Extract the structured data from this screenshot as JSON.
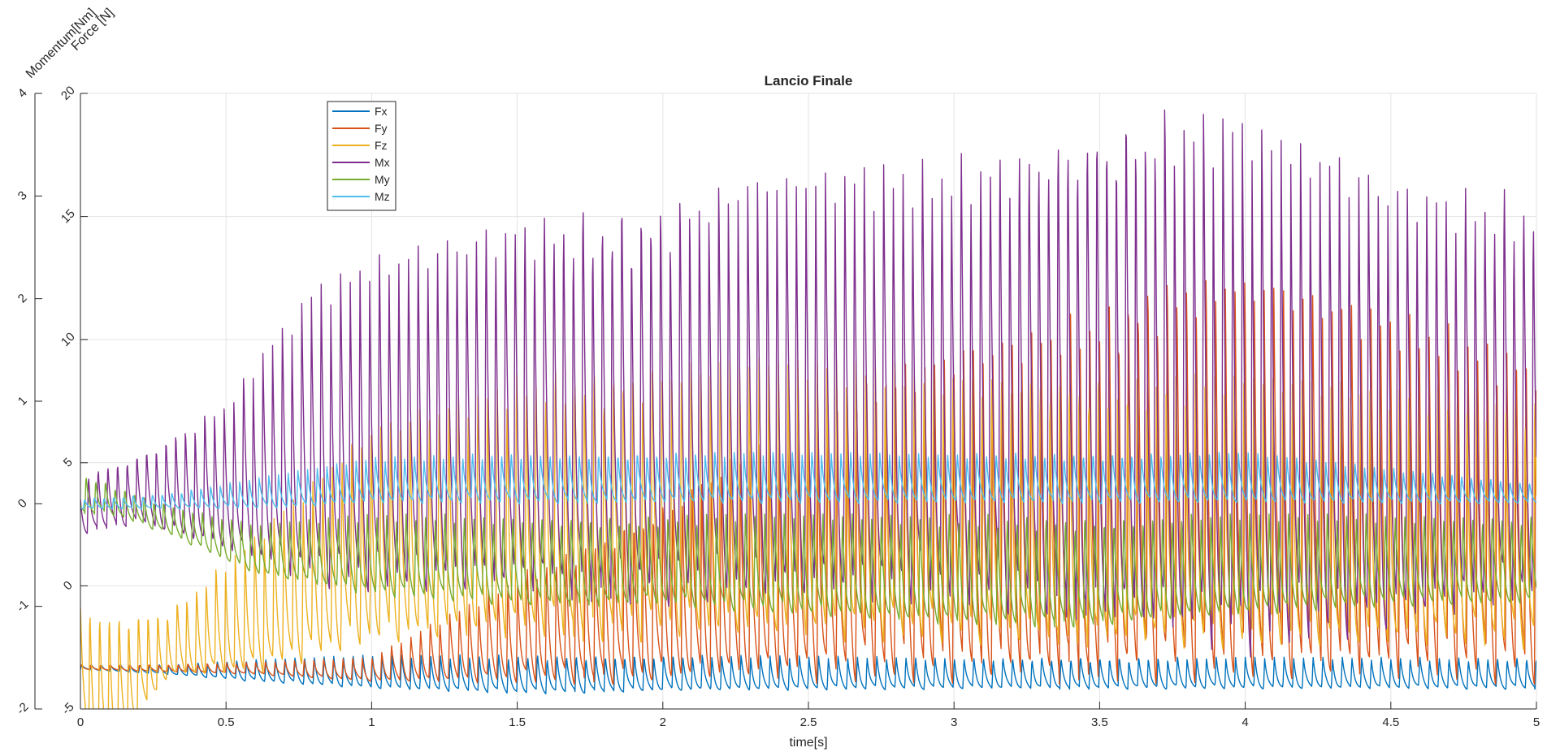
{
  "chart_data": {
    "type": "line",
    "title": "Lancio Finale",
    "xlabel": "time[s]",
    "ylabel_left_outer": "Momentum[Nm]",
    "ylabel_left_inner": "Force [N]",
    "xlim": [
      0,
      5
    ],
    "ylim_force": [
      -5,
      20
    ],
    "ylim_momentum": [
      -2,
      4
    ],
    "xticks": [
      "0",
      "0.5",
      "1",
      "1.5",
      "2",
      "2.5",
      "3",
      "3.5",
      "4",
      "4.5",
      "5"
    ],
    "yticks_force": [
      "-5",
      "0",
      "5",
      "10",
      "15",
      "20"
    ],
    "yticks_momentum": [
      "-2",
      "-1",
      "0",
      "1",
      "2",
      "3",
      "4"
    ],
    "grid": true,
    "legend_position": "top-left",
    "oscillation_period_s": 0.0333,
    "series": [
      {
        "name": "Fx",
        "axis": "force",
        "color": "#0072BD",
        "envelope_t": [
          0,
          0.3,
          0.6,
          1.0,
          1.5,
          2.0,
          3.0,
          4.0,
          5.0
        ],
        "envelope_max": [
          -3.2,
          -3.2,
          -3.0,
          -2.8,
          -2.8,
          -2.8,
          -2.9,
          -2.9,
          -2.9
        ],
        "envelope_min": [
          -3.4,
          -3.6,
          -3.9,
          -4.2,
          -4.4,
          -4.3,
          -4.2,
          -4.2,
          -4.2
        ]
      },
      {
        "name": "Fy",
        "axis": "force",
        "color": "#D95319",
        "envelope_t": [
          0,
          0.3,
          0.6,
          1.0,
          1.5,
          2.0,
          2.5,
          3.0,
          3.5,
          3.7,
          4.0,
          4.5,
          5.0
        ],
        "envelope_max": [
          -3.2,
          -3.2,
          -3.1,
          -2.9,
          0.5,
          3.5,
          7.0,
          10.0,
          12.0,
          12.5,
          12.3,
          11.2,
          9.8
        ],
        "envelope_min": [
          -3.4,
          -3.5,
          -3.6,
          -3.9,
          -4.0,
          -4.0,
          -4.0,
          -4.0,
          -4.0,
          -4.0,
          -4.0,
          -4.0,
          -4.0
        ]
      },
      {
        "name": "Fz",
        "axis": "force",
        "color": "#EDB120",
        "envelope_t": [
          0,
          0.1,
          0.3,
          0.6,
          1.0,
          1.5,
          2.0,
          2.5,
          3.0,
          3.5,
          4.0,
          4.5,
          5.0
        ],
        "envelope_max": [
          -0.5,
          -1.0,
          -1.0,
          2.0,
          6.5,
          8.8,
          9.3,
          9.2,
          9.0,
          8.8,
          8.5,
          8.2,
          8.0
        ],
        "envelope_min": [
          -6.0,
          -7.0,
          -3.8,
          -3.6,
          -2.5,
          -2.2,
          -2.3,
          -2.3,
          -2.4,
          -2.5,
          -2.6,
          -2.6,
          -2.6
        ]
      },
      {
        "name": "Mx",
        "axis": "momentum",
        "color": "#7E2F8E",
        "envelope_t": [
          0,
          0.2,
          0.5,
          0.8,
          1.0,
          1.5,
          2.0,
          2.5,
          3.0,
          3.5,
          3.7,
          4.0,
          4.5,
          5.0
        ],
        "envelope_max": [
          0.3,
          0.5,
          1.0,
          2.1,
          2.4,
          2.9,
          3.0,
          3.2,
          3.4,
          3.9,
          3.9,
          3.7,
          3.2,
          3.1
        ],
        "envelope_min": [
          -0.3,
          -0.2,
          -0.5,
          -0.8,
          -0.9,
          -0.9,
          -1.0,
          -1.0,
          -1.0,
          -1.2,
          -1.4,
          -1.5,
          -1.3,
          -1.0
        ]
      },
      {
        "name": "My",
        "axis": "momentum",
        "color": "#77AC30",
        "envelope_t": [
          0,
          0.1,
          0.3,
          0.6,
          1.0,
          1.5,
          2.0,
          2.5,
          3.0,
          3.5,
          4.0,
          4.5,
          5.0
        ],
        "envelope_max": [
          0.3,
          0.2,
          0.0,
          -0.2,
          -0.1,
          -0.1,
          -0.1,
          -0.1,
          -0.1,
          -0.1,
          -0.1,
          -0.1,
          -0.1
        ],
        "envelope_min": [
          -0.1,
          -0.1,
          -0.3,
          -0.7,
          -0.9,
          -1.0,
          -1.0,
          -1.1,
          -1.2,
          -1.2,
          -1.1,
          -1.0,
          -1.0
        ]
      },
      {
        "name": "Mz",
        "axis": "momentum",
        "color": "#4DBEEE",
        "envelope_t": [
          0,
          0.3,
          0.7,
          1.0,
          1.5,
          2.0,
          3.0,
          4.0,
          4.5,
          5.0
        ],
        "envelope_max": [
          0.05,
          0.1,
          0.3,
          0.45,
          0.5,
          0.5,
          0.5,
          0.5,
          0.35,
          0.2
        ],
        "envelope_min": [
          -0.05,
          -0.05,
          -0.05,
          0.0,
          0.0,
          0.0,
          0.0,
          0.0,
          0.0,
          0.0
        ]
      }
    ]
  }
}
